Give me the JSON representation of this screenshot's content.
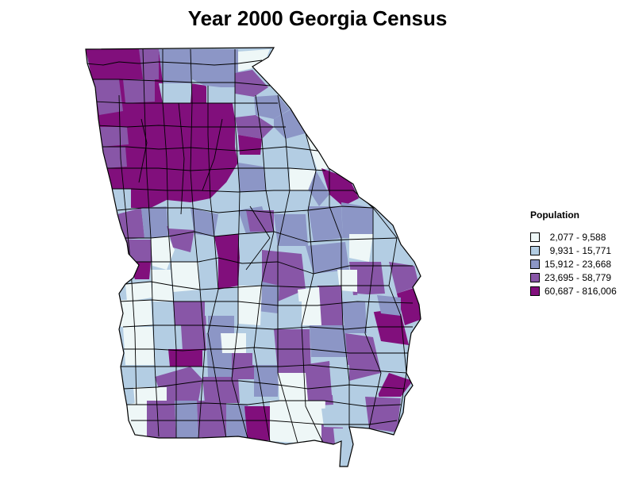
{
  "title": "Year 2000 Georgia Census",
  "legend": {
    "title": "Population",
    "items": [
      {
        "label": "  2,077 - 9,588",
        "color": "#eef7f7"
      },
      {
        "label": "  9,931 - 15,771",
        "color": "#b3cde3"
      },
      {
        "label": "15,912 - 23,668",
        "color": "#8c96c6"
      },
      {
        "label": "23,695 - 58,779",
        "color": "#8856a7"
      },
      {
        "label": "60,687 - 816,006",
        "color": "#810f7c"
      }
    ]
  }
}
